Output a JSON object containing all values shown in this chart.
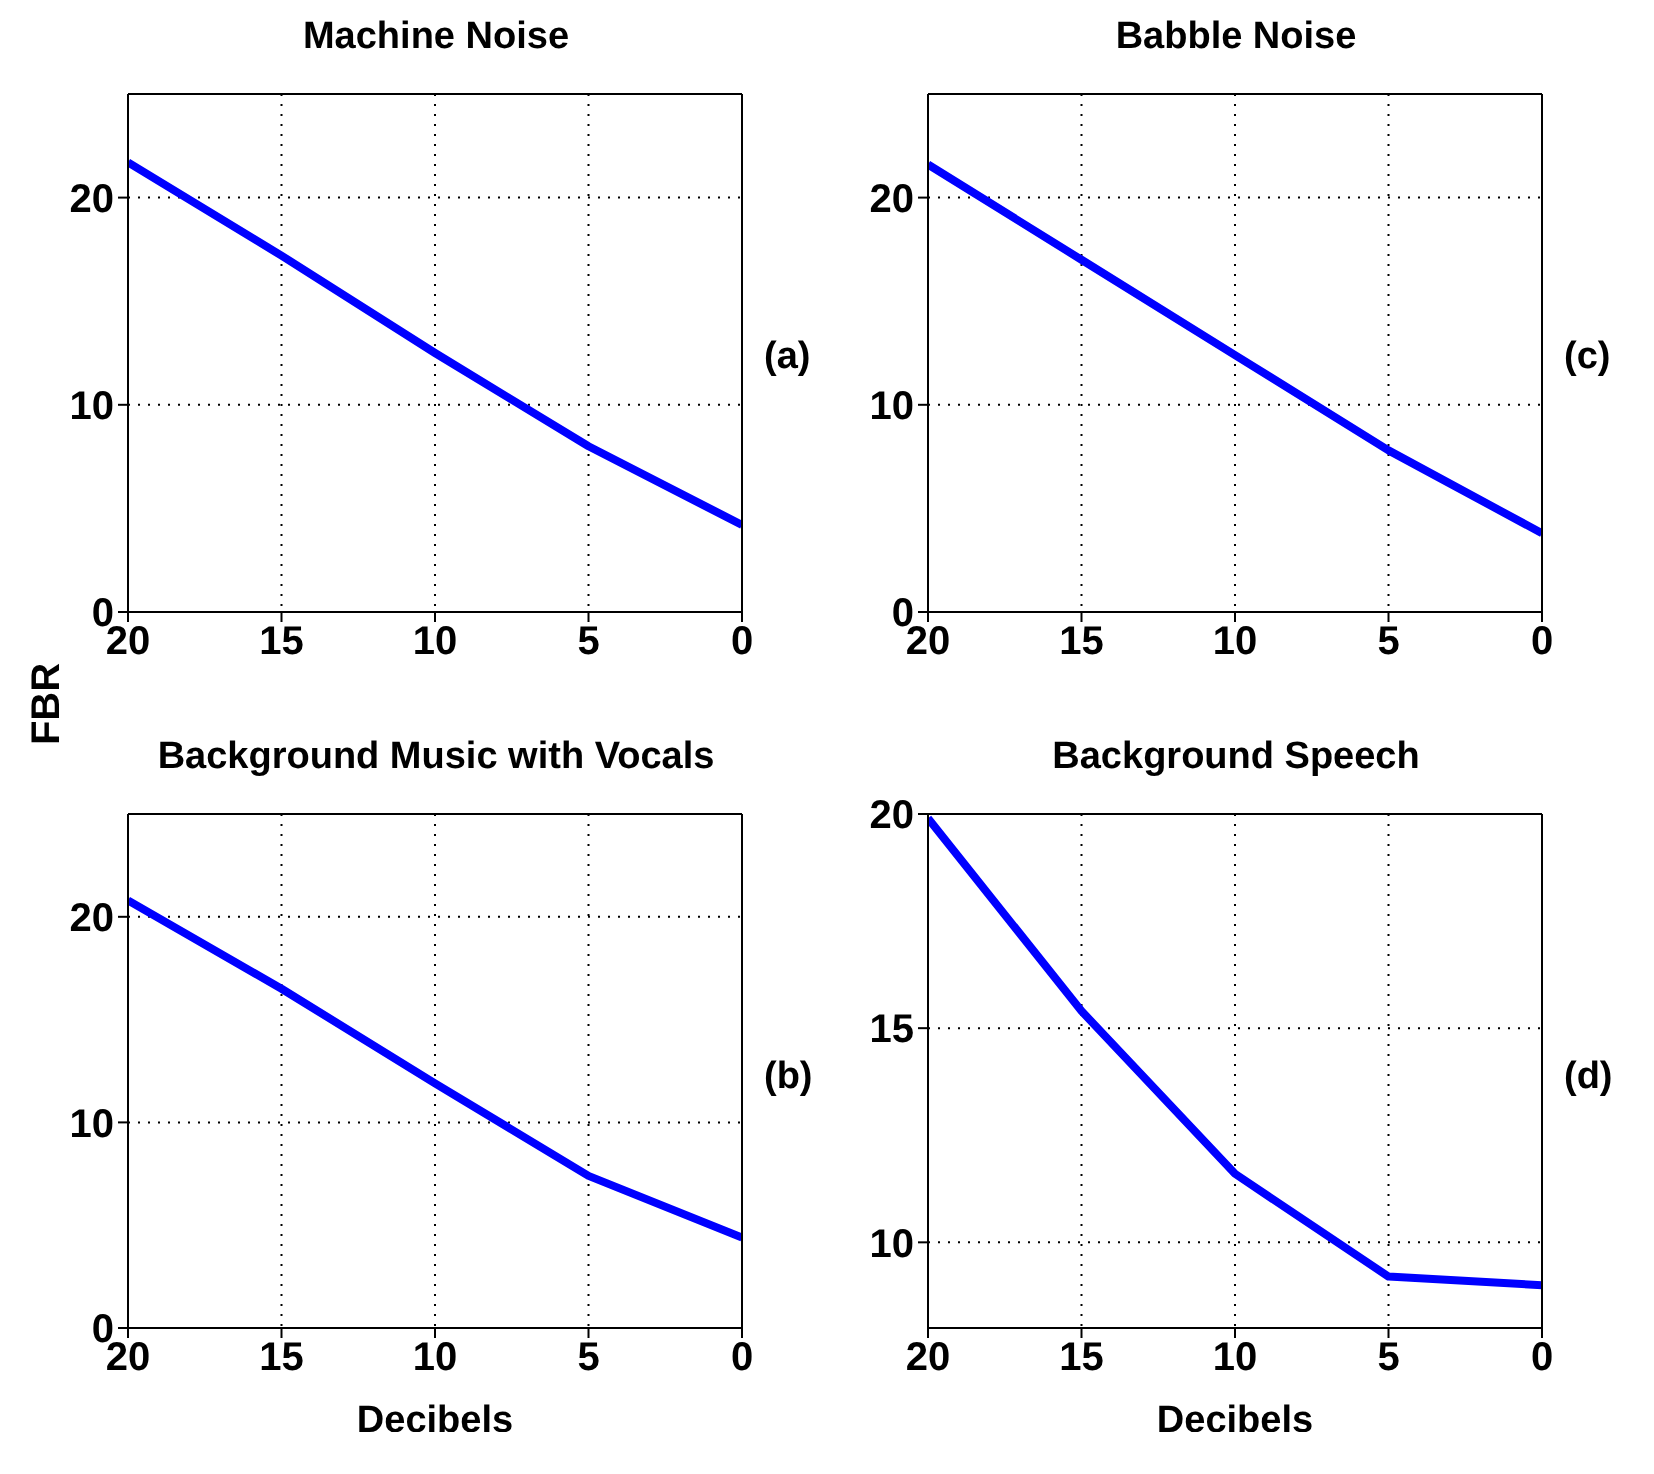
{
  "chart_data": [
    {
      "type": "line",
      "title": "Machine Noise",
      "ylabel": "FBR",
      "annotations": [
        "(a)"
      ],
      "x": [
        20,
        15,
        10,
        5,
        0
      ],
      "series": [
        {
          "color": "#0000ff",
          "values": [
            21.7,
            17.2,
            12.5,
            8.0,
            4.2
          ]
        }
      ],
      "xlim": [
        20,
        0
      ],
      "xticks": [
        20,
        15,
        10,
        5,
        0
      ],
      "ylim": [
        0,
        25
      ],
      "yticks": [
        0,
        10,
        20
      ],
      "grid": true,
      "marker": "none",
      "line_style": "solid"
    },
    {
      "type": "line",
      "title": "Babble Noise",
      "annotations": [
        "(c)"
      ],
      "x": [
        20,
        15,
        10,
        5,
        0
      ],
      "series": [
        {
          "color": "#0000ff",
          "values": [
            21.6,
            17.0,
            12.4,
            7.8,
            3.8
          ]
        }
      ],
      "xlim": [
        20,
        0
      ],
      "xticks": [
        20,
        15,
        10,
        5,
        0
      ],
      "ylim": [
        0,
        25
      ],
      "yticks": [
        0,
        10,
        20
      ],
      "grid": true,
      "marker": "none",
      "line_style": "solid"
    },
    {
      "type": "line",
      "title": "Background Music with Vocals",
      "xlabel": "Decibels",
      "annotations": [
        "(b)"
      ],
      "x": [
        20,
        15,
        10,
        5,
        0
      ],
      "series": [
        {
          "color": "#0000ff",
          "values": [
            20.8,
            16.5,
            11.9,
            7.4,
            4.4
          ]
        }
      ],
      "xlim": [
        20,
        0
      ],
      "xticks": [
        20,
        15,
        10,
        5,
        0
      ],
      "ylim": [
        0,
        25
      ],
      "yticks": [
        0,
        10,
        20
      ],
      "grid": true,
      "marker": "none",
      "line_style": "solid"
    },
    {
      "type": "line",
      "title": "Background Speech",
      "xlabel": "Decibels",
      "annotations": [
        "(d)"
      ],
      "x": [
        20,
        15,
        10,
        5,
        0
      ],
      "series": [
        {
          "color": "#0000ff",
          "values": [
            19.9,
            15.4,
            11.6,
            9.2,
            9.0
          ]
        }
      ],
      "xlim": [
        20,
        0
      ],
      "xticks": [
        20,
        15,
        10,
        5,
        0
      ],
      "ylim": [
        8,
        20
      ],
      "yticks": [
        10,
        15,
        20
      ],
      "grid": true,
      "marker": "none",
      "line_style": "solid"
    }
  ]
}
